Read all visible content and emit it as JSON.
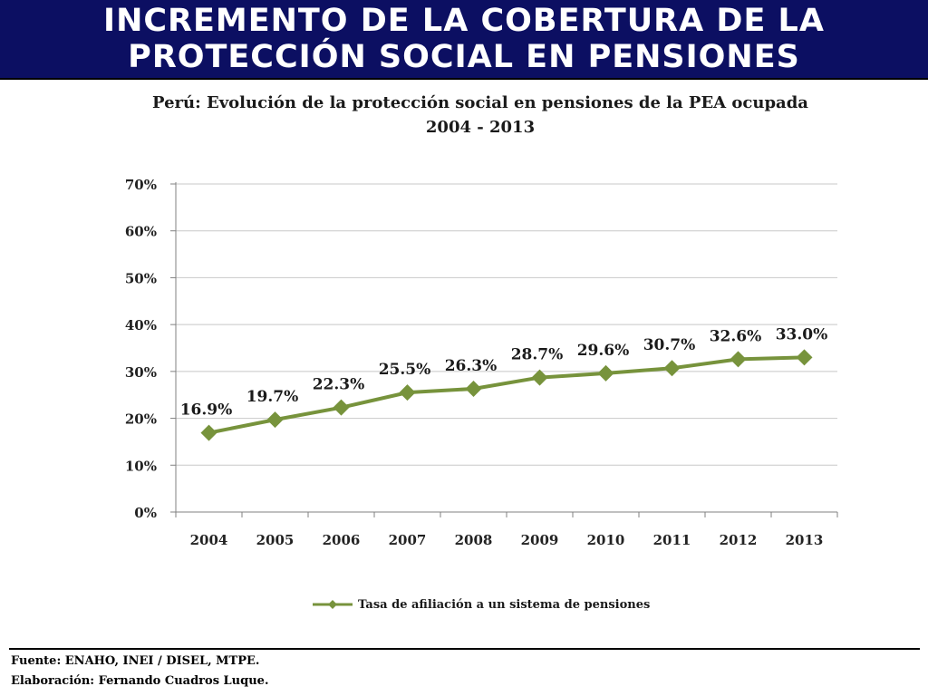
{
  "header": {
    "title_line1": "INCREMENTO DE LA COBERTURA DE LA",
    "title_line2": "PROTECCIÓN SOCIAL EN PENSIONES",
    "background_color": "#0c0f62"
  },
  "chart_data": {
    "type": "line",
    "title": "Perú: Evolución de la protección social en pensiones de la PEA ocupada",
    "subtitle": "2004 - 2013",
    "xlabel": "",
    "ylabel": "",
    "categories": [
      "2004",
      "2005",
      "2006",
      "2007",
      "2008",
      "2009",
      "2010",
      "2011",
      "2012",
      "2013"
    ],
    "series": [
      {
        "name": "Tasa de afiliación a un sistema de pensiones",
        "values": [
          16.9,
          19.7,
          22.3,
          25.5,
          26.3,
          28.7,
          29.6,
          30.7,
          32.6,
          33.0
        ],
        "labels": [
          "16.9%",
          "19.7%",
          "22.3%",
          "25.5%",
          "26.3%",
          "28.7%",
          "29.6%",
          "30.7%",
          "32.6%",
          "33.0%"
        ],
        "color": "#77933c",
        "marker": "diamond"
      }
    ],
    "ylim": [
      0,
      70
    ],
    "yticks": [
      "0%",
      "10%",
      "20%",
      "30%",
      "40%",
      "50%",
      "60%",
      "70%"
    ],
    "grid": true,
    "legend_position": "bottom"
  },
  "footer": {
    "source": "Fuente: ENAHO, INEI / DISEL, MTPE.",
    "author": "Elaboración: Fernando Cuadros Luque."
  }
}
